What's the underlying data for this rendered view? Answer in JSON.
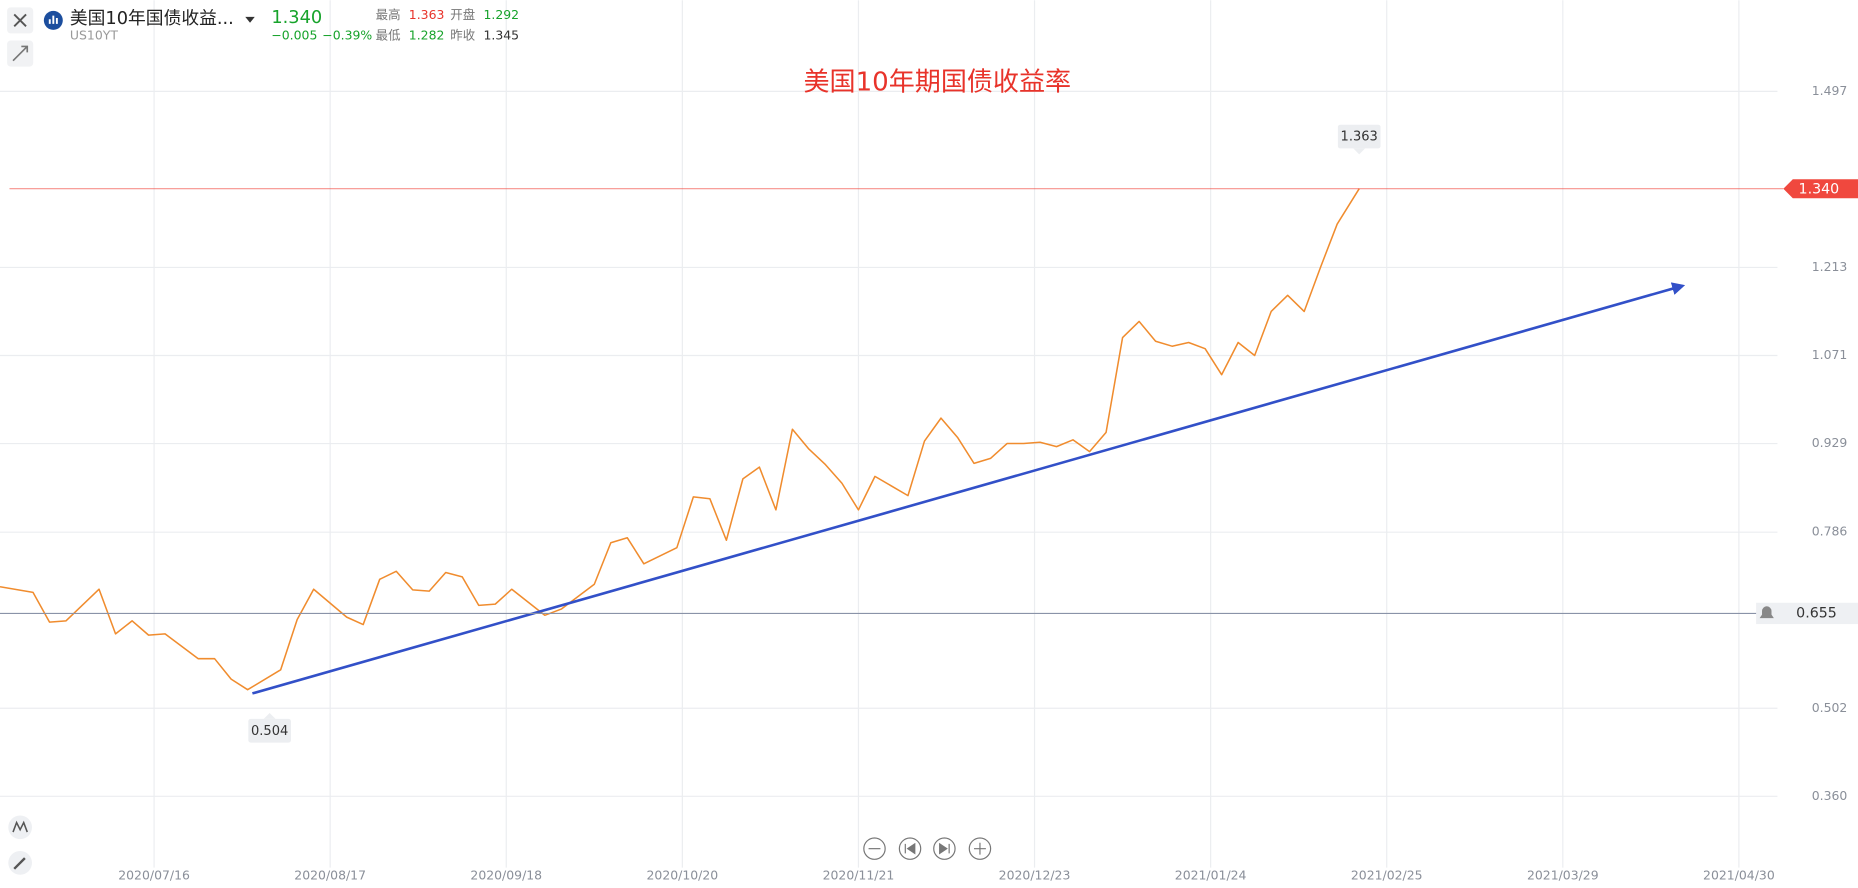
{
  "header": {
    "symbol_name": "美国10年国债收益...",
    "symbol_code": "US10YT",
    "price": "1.340",
    "change": "−0.005",
    "change_percent": "−0.39%",
    "high_label": "最高",
    "high": "1.363",
    "open_label": "开盘",
    "open": "1.292",
    "low_label": "最低",
    "low": "1.282",
    "prev_close_label": "昨收",
    "prev_close": "1.345"
  },
  "chart_data": {
    "type": "line",
    "title": "美国10年期国债收益率",
    "x": [
      "2020/06/18",
      "2020/06/24",
      "2020/06/27",
      "2020/06/30",
      "2020/07/06",
      "2020/07/09",
      "2020/07/12",
      "2020/07/15",
      "2020/07/18",
      "2020/07/24",
      "2020/07/27",
      "2020/07/30",
      "2020/08/02",
      "2020/08/08",
      "2020/08/11",
      "2020/08/14",
      "2020/08/20",
      "2020/08/23",
      "2020/08/26",
      "2020/08/29",
      "2020/09/01",
      "2020/09/04",
      "2020/09/07",
      "2020/09/10",
      "2020/09/13",
      "2020/09/16",
      "2020/09/19",
      "2020/09/25",
      "2020/09/28",
      "2020/10/04",
      "2020/10/07",
      "2020/10/10",
      "2020/10/13",
      "2020/10/19",
      "2020/10/22",
      "2020/10/25",
      "2020/10/28",
      "2020/10/31",
      "2020/11/03",
      "2020/11/06",
      "2020/11/09",
      "2020/11/12",
      "2020/11/15",
      "2020/11/18",
      "2020/11/21",
      "2020/11/24",
      "2020/11/30",
      "2020/12/03",
      "2020/12/06",
      "2020/12/09",
      "2020/12/12",
      "2020/12/15",
      "2020/12/18",
      "2020/12/21",
      "2020/12/24",
      "2020/12/27",
      "2020/12/30",
      "2021/01/02",
      "2021/01/05",
      "2021/01/08",
      "2021/01/11",
      "2021/01/14",
      "2021/01/17",
      "2021/01/20",
      "2021/01/23",
      "2021/01/26",
      "2021/01/29",
      "2021/02/01",
      "2021/02/04",
      "2021/02/07",
      "2021/02/10",
      "2021/02/13",
      "2021/02/16",
      "2021/02/20"
    ],
    "series": [
      {
        "name": "US10YT",
        "color": "#f08c2e",
        "values": [
          0.698,
          0.689,
          0.641,
          0.643,
          0.694,
          0.622,
          0.643,
          0.62,
          0.622,
          0.582,
          0.582,
          0.549,
          0.532,
          0.564,
          0.645,
          0.694,
          0.649,
          0.637,
          0.71,
          0.723,
          0.693,
          0.691,
          0.721,
          0.714,
          0.668,
          0.67,
          0.694,
          0.652,
          0.662,
          0.702,
          0.769,
          0.777,
          0.735,
          0.761,
          0.843,
          0.84,
          0.773,
          0.872,
          0.891,
          0.822,
          0.952,
          0.92,
          0.895,
          0.865,
          0.822,
          0.876,
          0.845,
          0.933,
          0.97,
          0.939,
          0.897,
          0.905,
          0.929,
          0.929,
          0.931,
          0.924,
          0.935,
          0.916,
          0.947,
          1.1,
          1.126,
          1.094,
          1.086,
          1.092,
          1.082,
          1.04,
          1.092,
          1.071,
          1.142,
          1.168,
          1.142,
          1.214,
          1.283,
          1.34
        ]
      }
    ],
    "xlim": [
      "2020/06/18",
      "2021/05/07"
    ],
    "xticks": [
      "2020/07/16",
      "2020/08/17",
      "2020/09/18",
      "2020/10/20",
      "2020/11/21",
      "2020/12/23",
      "2021/01/24",
      "2021/02/25",
      "2021/03/29",
      "2021/04/30"
    ],
    "ylim": [
      0.245,
      1.644
    ],
    "yticks": [
      {
        "value": 0.36,
        "label": "0.360"
      },
      {
        "value": 0.502,
        "label": "0.502"
      },
      {
        "value": 0.786,
        "label": "0.786"
      },
      {
        "value": 0.929,
        "label": "0.929"
      },
      {
        "value": 1.071,
        "label": "1.071"
      },
      {
        "value": 1.213,
        "label": "1.213"
      },
      {
        "value": 1.497,
        "label": "1.497"
      }
    ],
    "grid": true,
    "current_price": {
      "value": 1.34,
      "label": "1.340",
      "color": "#f0483e"
    },
    "alert_level": {
      "value": 0.655,
      "label": "0.655",
      "color": "#8a93a8"
    },
    "annotations": [
      {
        "x": "2021/02/20",
        "value": 1.363,
        "label": "1.363",
        "position": "above"
      },
      {
        "x": "2020/08/06",
        "value": 0.504,
        "label": "0.504",
        "position": "below"
      }
    ]
  }
}
